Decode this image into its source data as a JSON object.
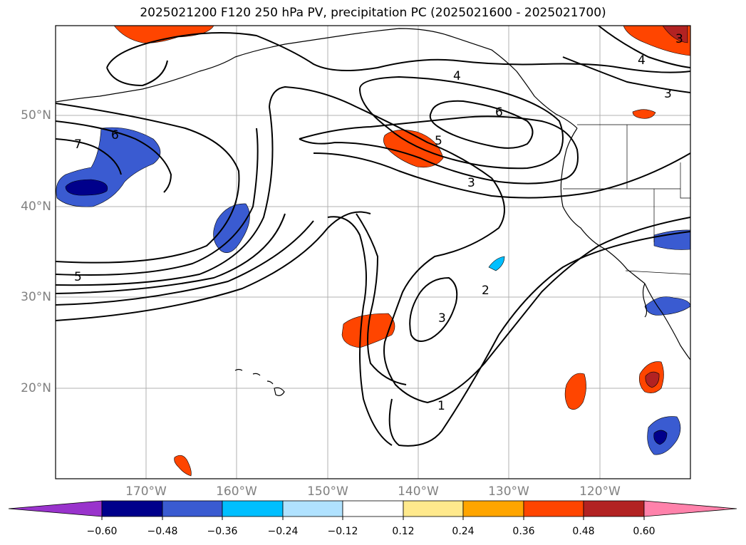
{
  "title": "2025021200 F120 250 hPa PV, precipitation PC (2025021600 - 2025021700)",
  "map": {
    "lat_labels": [
      "50°N",
      "40°N",
      "30°N",
      "20°N"
    ],
    "lon_labels": [
      "170°W",
      "160°W",
      "150°W",
      "140°W",
      "130°W",
      "120°W"
    ],
    "pv_contour_labels": [
      "7",
      "6",
      "5",
      "5",
      "4",
      "6",
      "3",
      "3",
      "2",
      "3",
      "1",
      "4",
      "3"
    ]
  },
  "colorbar": {
    "tick_labels": [
      "−0.60",
      "−0.48",
      "−0.36",
      "−0.24",
      "−0.12",
      "0.12",
      "0.24",
      "0.36",
      "0.48",
      "0.60"
    ],
    "colors": [
      "#9933cc",
      "#00008b",
      "#3a5bd1",
      "#00bfff",
      "#b0e2ff",
      "#ffffff",
      "#ffe98c",
      "#ffa500",
      "#ff4500",
      "#b22222",
      "#ff82ab"
    ]
  }
}
